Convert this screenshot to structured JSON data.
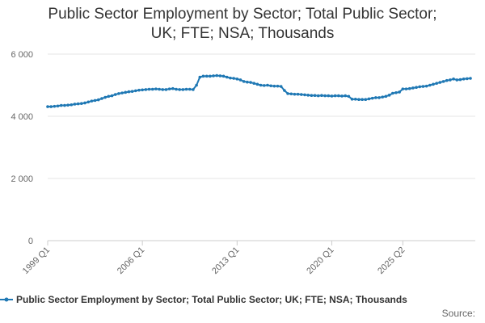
{
  "title_line1": "Public Sector Employment by Sector; Total Public Sector;",
  "title_line2": "UK; FTE; NSA; Thousands",
  "source_label": "Source:",
  "chart_data": {
    "type": "line",
    "title": "Public Sector Employment by Sector; Total Public Sector; UK; FTE; NSA; Thousands",
    "xlabel": "",
    "ylabel": "",
    "x_tick_labels": [
      "1999 Q1",
      "2006 Q1",
      "2013 Q1",
      "2020 Q1",
      "2025 Q2"
    ],
    "y_tick_labels": [
      "0",
      "2 000",
      "4 000",
      "6 000"
    ],
    "y_ticks": [
      0,
      2000,
      4000,
      6000
    ],
    "ylim": [
      0,
      6000
    ],
    "x_start": "1999 Q1",
    "x_end": "2025 Q2",
    "grid": true,
    "legend_position": "bottom",
    "series": [
      {
        "name": "Public Sector Employment by Sector; Total Public Sector; UK; FTE; NSA; Thousands",
        "color": "#1f78b4",
        "values": [
          4310,
          4310,
          4320,
          4330,
          4350,
          4350,
          4360,
          4370,
          4390,
          4400,
          4410,
          4430,
          4460,
          4490,
          4510,
          4530,
          4570,
          4610,
          4640,
          4660,
          4700,
          4730,
          4750,
          4770,
          4790,
          4800,
          4820,
          4840,
          4850,
          4860,
          4870,
          4870,
          4880,
          4870,
          4860,
          4860,
          4880,
          4890,
          4870,
          4860,
          4860,
          4870,
          4870,
          4860,
          5000,
          5260,
          5290,
          5290,
          5290,
          5300,
          5310,
          5300,
          5290,
          5260,
          5230,
          5220,
          5200,
          5170,
          5120,
          5100,
          5090,
          5060,
          5030,
          5000,
          4990,
          5000,
          4980,
          4970,
          4970,
          4960,
          4830,
          4730,
          4720,
          4710,
          4710,
          4700,
          4690,
          4680,
          4670,
          4670,
          4660,
          4670,
          4660,
          4660,
          4650,
          4660,
          4660,
          4650,
          4660,
          4640,
          4550,
          4550,
          4540,
          4540,
          4540,
          4560,
          4580,
          4600,
          4600,
          4620,
          4640,
          4680,
          4740,
          4760,
          4780,
          4880,
          4880,
          4890,
          4910,
          4930,
          4950,
          4960,
          4970,
          5000,
          5030,
          5060,
          5090,
          5120,
          5150,
          5170,
          5200,
          5170,
          5180,
          5200,
          5210,
          5220
        ]
      }
    ]
  }
}
